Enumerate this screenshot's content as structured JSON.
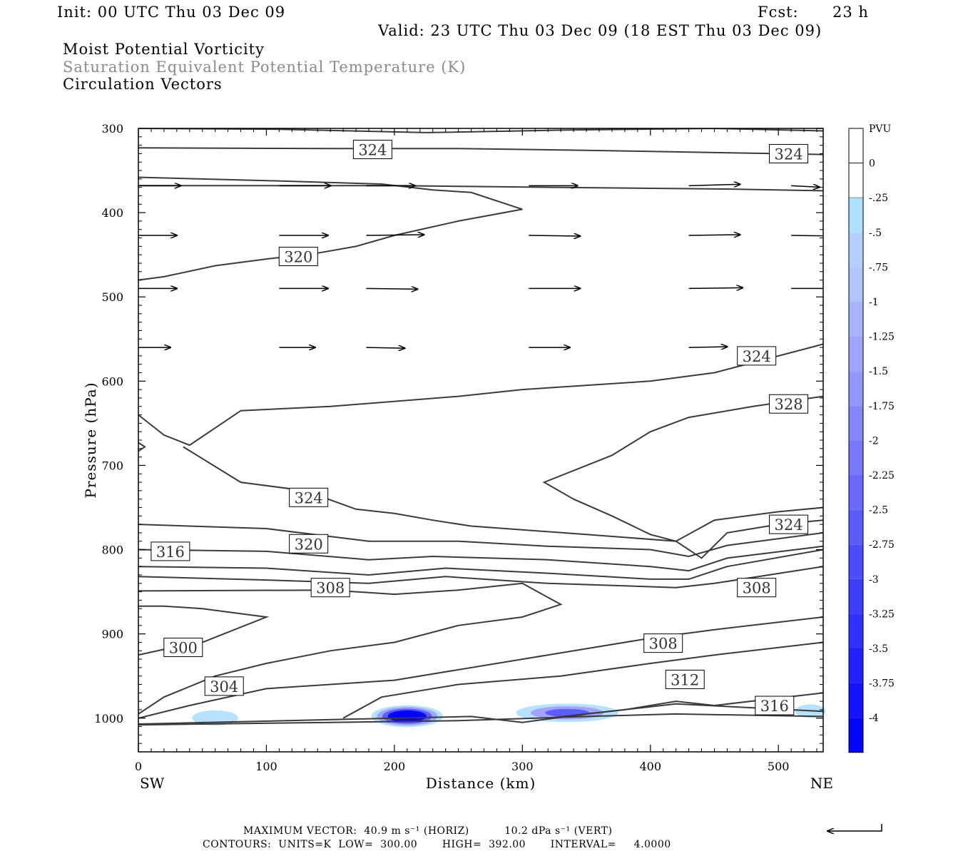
{
  "header": {
    "init": "Init: 00 UTC Thu 03 Dec 09",
    "fcst_label": "Fcst:",
    "fcst_value": "23 h",
    "valid": "Valid: 23 UTC Thu 03 Dec 09 (18 EST Thu 03 Dec 09)",
    "field1": "Moist Potential Vorticity",
    "field2": "Saturation Equivalent Potential Temperature (K)",
    "field3": "Circulation Vectors"
  },
  "colors": {
    "contour": "#3a3a3a",
    "frame": "#000000",
    "pvu_scale": [
      "#0000ff",
      "#1a1aff",
      "#2e2eff",
      "#4343ff",
      "#5656ff",
      "#6a6aff",
      "#7d7dff",
      "#8f8fff",
      "#9e9eff",
      "#a9b5ff",
      "#b3c4ff",
      "#b5d0ff",
      "#aedfff",
      "#ffffff",
      "#ffffff"
    ]
  },
  "footer": {
    "max_vector": "MAXIMUM VECTOR:  40.9 m s⁻¹ (HORIZ)          10.2 dPa s⁻¹ (VERT)",
    "contours": "CONTOURS:  UNITS=K  LOW=  300.00       HIGH=  392.00       INTERVAL=     4.0000"
  },
  "chart_data": {
    "type": "contour",
    "xlabel": "Distance (km)",
    "ylabel": "Pressure (hPa)",
    "xlim": [
      0,
      535
    ],
    "ylim": [
      1040,
      300
    ],
    "x_ticks": [
      0,
      100,
      200,
      300,
      400,
      500
    ],
    "y_ticks": [
      300,
      400,
      500,
      600,
      700,
      800,
      900,
      1000
    ],
    "x_end_labels": {
      "left": "SW",
      "right": "NE"
    },
    "legend": {
      "title": "PVU",
      "labels": [
        "0",
        "-.25",
        "-.5",
        "-.75",
        "-1",
        "-1.25",
        "-1.5",
        "-1.75",
        "-2",
        "-2.25",
        "-2.5",
        "-2.75",
        "-3",
        "-3.25",
        "-3.5",
        "-3.75",
        "-4"
      ]
    },
    "contour_labels": [
      {
        "text": "324",
        "x": 183,
        "p": 325
      },
      {
        "text": "324",
        "x": 508,
        "p": 330
      },
      {
        "text": "320",
        "x": 125,
        "p": 452
      },
      {
        "text": "324",
        "x": 483,
        "p": 570
      },
      {
        "text": "328",
        "x": 508,
        "p": 627
      },
      {
        "text": "324",
        "x": 133,
        "p": 738
      },
      {
        "text": "324",
        "x": 508,
        "p": 770
      },
      {
        "text": "320",
        "x": 133,
        "p": 793
      },
      {
        "text": "316",
        "x": 25,
        "p": 802
      },
      {
        "text": "308",
        "x": 150,
        "p": 845
      },
      {
        "text": "308",
        "x": 483,
        "p": 845
      },
      {
        "text": "300",
        "x": 35,
        "p": 916
      },
      {
        "text": "304",
        "x": 67,
        "p": 962
      },
      {
        "text": "308",
        "x": 410,
        "p": 911
      },
      {
        "text": "312",
        "x": 427,
        "p": 954
      },
      {
        "text": "316",
        "x": 497,
        "p": 985
      }
    ],
    "contours": [
      [
        [
          0,
          300
        ],
        [
          110,
          301
        ],
        [
          225,
          305
        ],
        [
          330,
          302
        ],
        [
          450,
          300
        ],
        [
          535,
          303
        ]
      ],
      [
        [
          0,
          323
        ],
        [
          150,
          324
        ],
        [
          250,
          324
        ],
        [
          350,
          326
        ],
        [
          500,
          330
        ],
        [
          535,
          331
        ]
      ],
      [
        [
          0,
          358
        ],
        [
          100,
          362
        ],
        [
          190,
          366
        ],
        [
          230,
          373
        ],
        [
          260,
          376
        ],
        [
          300,
          396
        ],
        [
          250,
          410
        ],
        [
          200,
          427
        ],
        [
          170,
          440
        ],
        [
          140,
          448
        ],
        [
          100,
          455
        ],
        [
          60,
          463
        ],
        [
          20,
          476
        ],
        [
          0,
          480
        ]
      ],
      [
        [
          0,
          368
        ],
        [
          200,
          368
        ],
        [
          330,
          370
        ],
        [
          460,
          372
        ],
        [
          535,
          374
        ]
      ],
      [
        [
          0,
          640
        ],
        [
          20,
          664
        ],
        [
          40,
          676
        ],
        [
          80,
          635
        ],
        [
          150,
          630
        ],
        [
          250,
          618
        ],
        [
          300,
          610
        ],
        [
          400,
          600
        ],
        [
          450,
          590
        ],
        [
          535,
          556
        ]
      ],
      [
        [
          0,
          673
        ],
        [
          5,
          678
        ],
        [
          0,
          683
        ]
      ],
      [
        [
          535,
          618
        ],
        [
          480,
          630
        ],
        [
          430,
          643
        ],
        [
          400,
          660
        ],
        [
          370,
          688
        ],
        [
          317,
          720
        ],
        [
          340,
          740
        ],
        [
          370,
          760
        ],
        [
          400,
          782
        ],
        [
          420,
          790
        ],
        [
          450,
          765
        ],
        [
          500,
          755
        ],
        [
          535,
          750
        ]
      ],
      [
        [
          35,
          678
        ],
        [
          80,
          720
        ],
        [
          130,
          730
        ],
        [
          170,
          752
        ],
        [
          200,
          757
        ],
        [
          230,
          765
        ],
        [
          260,
          772
        ],
        [
          350,
          782
        ],
        [
          420,
          790
        ],
        [
          440,
          810
        ],
        [
          460,
          780
        ],
        [
          500,
          770
        ],
        [
          535,
          765
        ]
      ],
      [
        [
          0,
          770
        ],
        [
          100,
          775
        ],
        [
          180,
          790
        ],
        [
          250,
          790
        ],
        [
          320,
          796
        ],
        [
          400,
          800
        ],
        [
          430,
          808
        ],
        [
          460,
          795
        ],
        [
          535,
          780
        ]
      ],
      [
        [
          0,
          800
        ],
        [
          100,
          802
        ],
        [
          180,
          812
        ],
        [
          230,
          808
        ],
        [
          320,
          812
        ],
        [
          400,
          820
        ],
        [
          430,
          825
        ],
        [
          460,
          810
        ],
        [
          535,
          796
        ]
      ],
      [
        [
          0,
          820
        ],
        [
          100,
          822
        ],
        [
          180,
          830
        ],
        [
          240,
          822
        ],
        [
          320,
          828
        ],
        [
          400,
          835
        ],
        [
          430,
          835
        ],
        [
          460,
          820
        ],
        [
          535,
          800
        ]
      ],
      [
        [
          0,
          832
        ],
        [
          100,
          836
        ],
        [
          180,
          840
        ],
        [
          240,
          832
        ],
        [
          320,
          840
        ],
        [
          420,
          845
        ],
        [
          450,
          840
        ],
        [
          535,
          820
        ]
      ],
      [
        [
          0,
          849
        ],
        [
          150,
          848
        ],
        [
          200,
          853
        ],
        [
          250,
          848
        ],
        [
          300,
          840
        ],
        [
          330,
          865
        ],
        [
          300,
          880
        ],
        [
          250,
          890
        ],
        [
          200,
          910
        ],
        [
          150,
          920
        ],
        [
          100,
          935
        ],
        [
          60,
          950
        ],
        [
          20,
          975
        ],
        [
          0,
          995
        ]
      ],
      [
        [
          0,
          925
        ],
        [
          30,
          915
        ],
        [
          50,
          910
        ],
        [
          100,
          880
        ],
        [
          50,
          870
        ],
        [
          20,
          867
        ],
        [
          0,
          867
        ]
      ],
      [
        [
          0,
          1000
        ],
        [
          40,
          985
        ],
        [
          100,
          965
        ],
        [
          200,
          955
        ],
        [
          300,
          930
        ],
        [
          400,
          905
        ],
        [
          450,
          895
        ],
        [
          535,
          880
        ]
      ],
      [
        [
          160,
          1000
        ],
        [
          190,
          975
        ],
        [
          250,
          960
        ],
        [
          330,
          950
        ],
        [
          400,
          935
        ],
        [
          450,
          925
        ],
        [
          535,
          910
        ]
      ],
      [
        [
          320,
          1000
        ],
        [
          380,
          990
        ],
        [
          420,
          980
        ],
        [
          450,
          985
        ],
        [
          535,
          970
        ]
      ],
      [
        [
          0,
          1007
        ],
        [
          200,
          1000
        ],
        [
          260,
          998
        ],
        [
          300,
          1005
        ],
        [
          350,
          995
        ],
        [
          420,
          983
        ],
        [
          535,
          992
        ]
      ],
      [
        [
          0,
          1008
        ],
        [
          150,
          1005
        ],
        [
          250,
          1003
        ],
        [
          350,
          998
        ],
        [
          420,
          995
        ],
        [
          535,
          998
        ]
      ]
    ],
    "pv_blobs": [
      {
        "x": 60,
        "p": 998,
        "rx": 18,
        "rp": 9,
        "level": -0.5
      },
      {
        "x": 210,
        "p": 996,
        "rx": 28,
        "rp": 13,
        "level": -3.0
      },
      {
        "x": 335,
        "p": 992,
        "rx": 40,
        "rp": 11,
        "level": -1.5
      },
      {
        "x": 525,
        "p": 990,
        "rx": 12,
        "rp": 8,
        "level": -0.5
      }
    ],
    "vector_rows": [
      {
        "p": 368,
        "x": [
          0,
          110,
          178,
          305,
          430,
          510
        ],
        "dx": [
          33,
          40,
          38,
          38,
          40,
          22
        ],
        "dp": [
          0,
          0,
          0,
          0,
          -2,
          2
        ]
      },
      {
        "p": 427,
        "x": [
          0,
          110,
          178,
          305,
          430,
          510
        ],
        "dx": [
          30,
          38,
          45,
          40,
          40,
          38
        ],
        "dp": [
          0,
          0,
          -1,
          1,
          -1,
          1
        ]
      },
      {
        "p": 490,
        "x": [
          0,
          110,
          178,
          305,
          430,
          510
        ],
        "dx": [
          30,
          38,
          40,
          40,
          42,
          30
        ],
        "dp": [
          0,
          0,
          1,
          0,
          -1,
          0
        ]
      },
      {
        "p": 560,
        "x": [
          0,
          110,
          178,
          305,
          430,
          510
        ],
        "dx": [
          25,
          28,
          30,
          32,
          30,
          0
        ],
        "dp": [
          0,
          0,
          1,
          0,
          -1,
          0
        ]
      }
    ],
    "vector_note": "Horizontal wind vectors shown on regular rows; lengths in km-equivalent plot units"
  }
}
